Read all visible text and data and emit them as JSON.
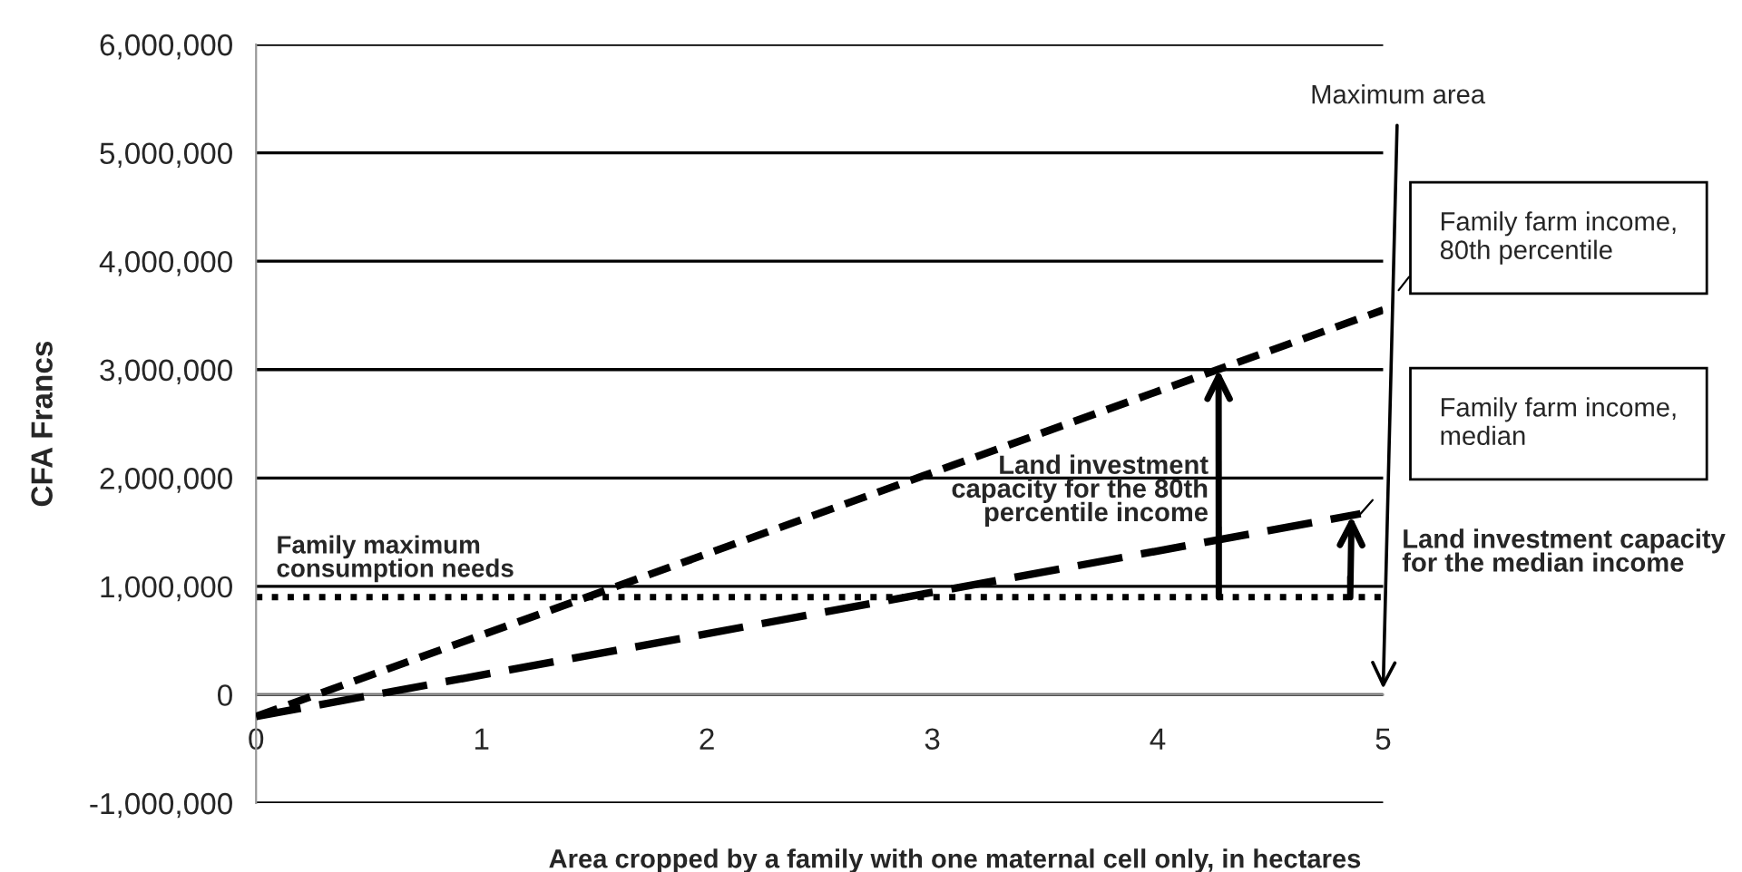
{
  "chart_data": {
    "type": "line",
    "xlabel": "Area cropped by a family with one maternal cell only, in hectares",
    "ylabel": "CFA Francs",
    "xlim": [
      0,
      5
    ],
    "xticks": [
      0,
      1,
      2,
      3,
      4,
      5
    ],
    "ylim": [
      -1000000,
      6000000
    ],
    "yticks": [
      {
        "value": -1000000,
        "label": "-1,000,000"
      },
      {
        "value": 0,
        "label": "0"
      },
      {
        "value": 1000000,
        "label": "1,000,000"
      },
      {
        "value": 2000000,
        "label": "2,000,000"
      },
      {
        "value": 3000000,
        "label": "3,000,000"
      },
      {
        "value": 4000000,
        "label": "4,000,000"
      },
      {
        "value": 5000000,
        "label": "5,000,000"
      },
      {
        "value": 6000000,
        "label": "6,000,000"
      }
    ],
    "grid": "y",
    "legend": false,
    "marker": "none",
    "series": [
      {
        "name": "Family farm income, 80th percentile",
        "color": "#000000",
        "line_style": "dashed",
        "x": [
          0,
          5
        ],
        "values": [
          -200000,
          3550000
        ]
      },
      {
        "name": "Family farm income, median",
        "color": "#000000",
        "line_style": "dashed",
        "x": [
          0,
          4.9
        ],
        "values": [
          -200000,
          1670000
        ]
      }
    ],
    "ref_lines": [
      {
        "axis": "y",
        "value": 900000,
        "label": "Family maximum consumption needs",
        "color": "#000000",
        "line_style": "dotted"
      }
    ],
    "annotations": [
      "Maximum area",
      {
        "text": "Land investment capacity for the 80th percentile income",
        "x": 4.27,
        "y": 3000000
      },
      {
        "text": "Land investment capacity for the median income",
        "x": 4.86,
        "y": 1650000
      }
    ]
  }
}
